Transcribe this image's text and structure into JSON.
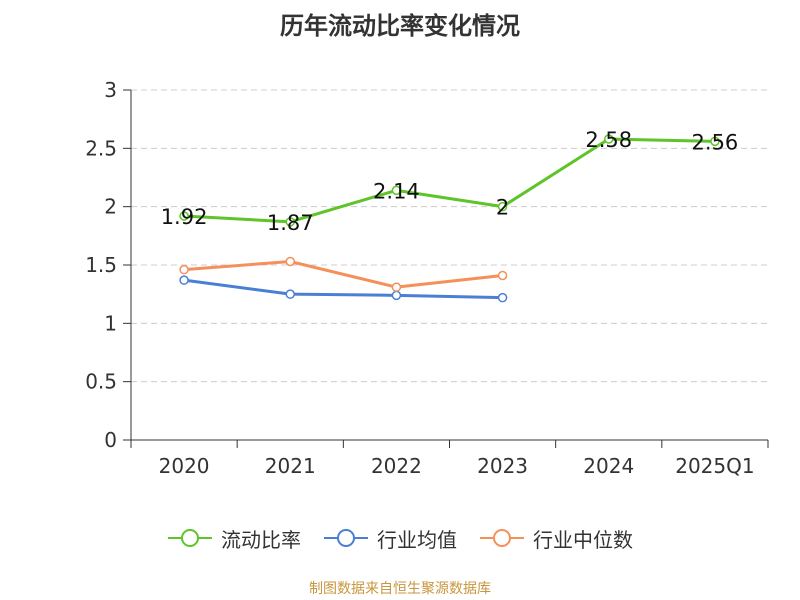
{
  "chart_data": {
    "type": "line",
    "title": "历年流动比率变化情况",
    "categories": [
      "2020",
      "2021",
      "2022",
      "2023",
      "2024",
      "2025Q1"
    ],
    "ylim": [
      0,
      3
    ],
    "yticks": [
      "0",
      "0.5",
      "1",
      "1.5",
      "2",
      "2.5",
      "3"
    ],
    "grid": true,
    "legend_position": "bottom",
    "series": [
      {
        "name": "流动比率",
        "color": "#5ec429",
        "values": [
          1.92,
          1.87,
          2.14,
          2.0,
          2.58,
          2.56
        ],
        "labels": [
          "1.92",
          "1.87",
          "2.14",
          "2",
          "2.58",
          "2.56"
        ]
      },
      {
        "name": "行业均值",
        "color": "#4a7fd6",
        "values": [
          1.37,
          1.25,
          1.24,
          1.22,
          null,
          null
        ]
      },
      {
        "name": "行业中位数",
        "color": "#f5905a",
        "values": [
          1.46,
          1.53,
          1.31,
          1.41,
          null,
          null
        ]
      }
    ],
    "source": "制图数据来自恒生聚源数据库"
  }
}
